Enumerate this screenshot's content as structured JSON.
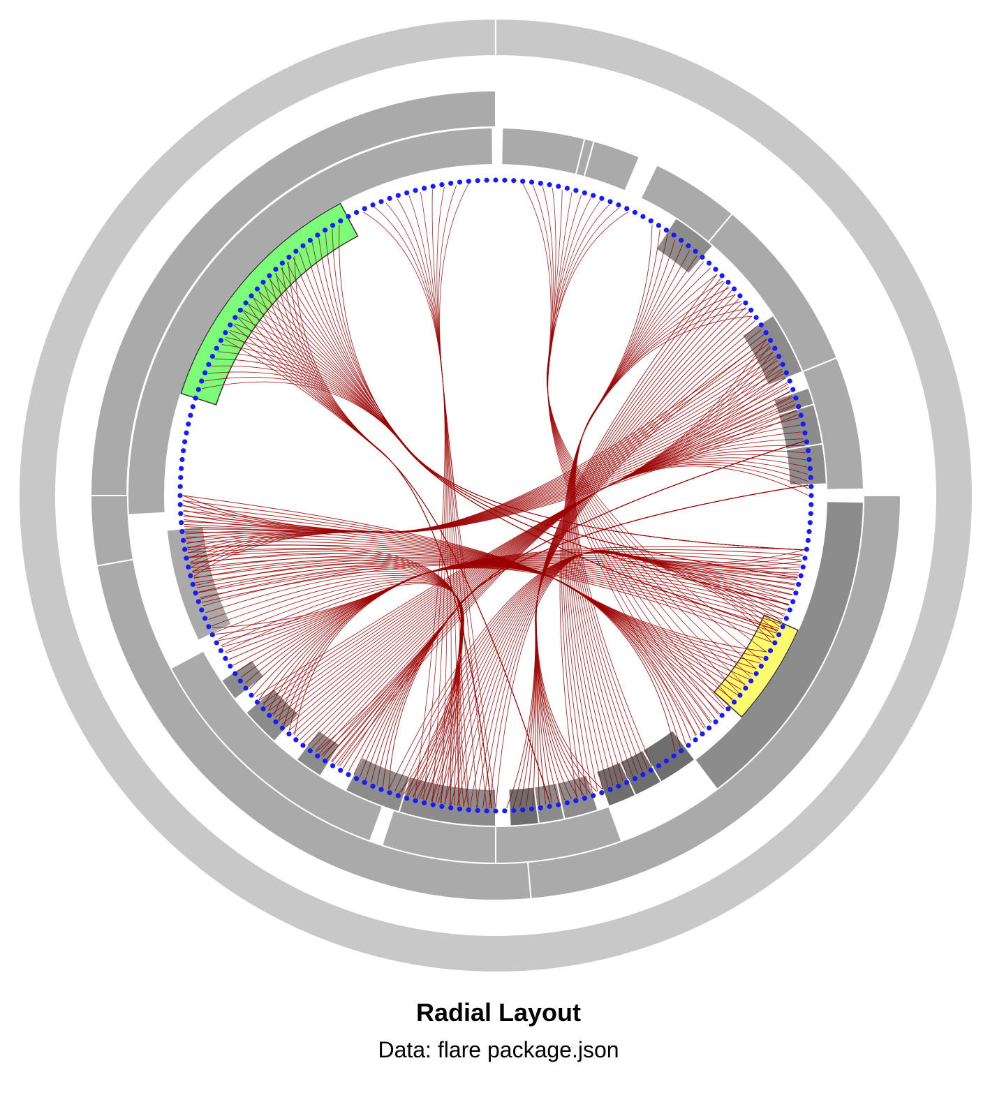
{
  "title": "Radial Layout",
  "subtitle": "Data: flare package.json",
  "colors": {
    "ring_outer": "#c8c8c8",
    "ring_mid": "#aaaaaa",
    "ring_inner": "#8c8c8c",
    "ring_dark": "#6e6e6e",
    "highlight_green": "#7dfc7a",
    "highlight_yellow": "#fdfc6e",
    "edges": "#9b0000",
    "nodes": "#1a1aff"
  },
  "diagram": {
    "leaf_node_count": 220,
    "hierarchy_levels": 4,
    "highlighted_groups": [
      "green",
      "yellow"
    ]
  }
}
